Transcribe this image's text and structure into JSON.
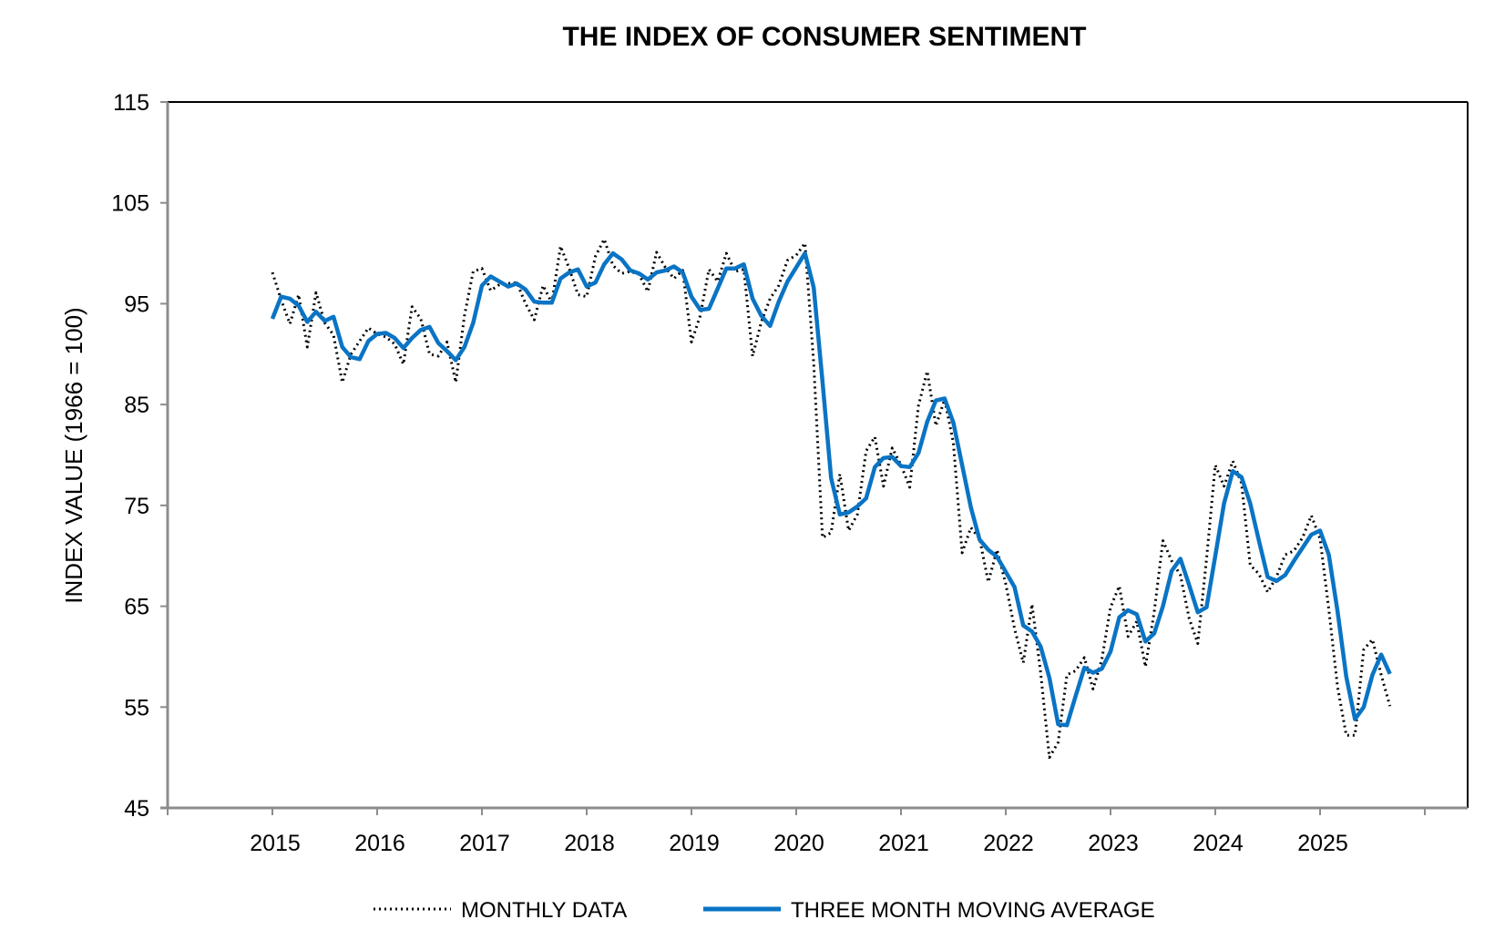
{
  "chart_data": {
    "type": "line",
    "title": "THE INDEX OF CONSUMER SENTIMENT",
    "xlabel": "",
    "ylabel": "INDEX VALUE (1966 = 100)",
    "ylim": [
      45,
      115
    ],
    "yticks": [
      45,
      55,
      65,
      75,
      85,
      95,
      105,
      115
    ],
    "xlim": [
      2014,
      2026.4
    ],
    "xticks": [
      "2015",
      "2016",
      "2017",
      "2018",
      "2019",
      "2020",
      "2021",
      "2022",
      "2023",
      "2024",
      "2025"
    ],
    "x_start": "2015-01",
    "x_frequency": "monthly",
    "grid": false,
    "legend_position": "bottom",
    "series": [
      {
        "name": "MONTHLY DATA",
        "style": "dotted",
        "color": "#000000",
        "values": [
          98.1,
          95.4,
          93.0,
          95.9,
          90.7,
          96.1,
          93.1,
          91.9,
          87.2,
          90.0,
          91.3,
          92.6,
          92.0,
          91.7,
          91.0,
          89.0,
          94.7,
          93.5,
          90.0,
          89.8,
          91.2,
          87.2,
          93.8,
          98.2,
          98.5,
          96.3,
          96.9,
          97.0,
          97.1,
          95.0,
          93.4,
          96.8,
          95.1,
          100.7,
          98.5,
          95.9,
          95.7,
          99.7,
          101.4,
          98.8,
          98.0,
          98.2,
          97.9,
          96.2,
          100.1,
          98.6,
          97.5,
          98.3,
          91.2,
          93.8,
          98.4,
          97.2,
          100.0,
          98.2,
          98.4,
          89.8,
          93.2,
          95.5,
          96.8,
          99.3,
          99.8,
          101.0,
          89.1,
          71.8,
          72.3,
          78.1,
          72.5,
          74.1,
          80.4,
          81.8,
          76.9,
          80.7,
          79.0,
          76.8,
          84.9,
          88.3,
          82.9,
          85.5,
          81.2,
          70.3,
          72.8,
          71.7,
          67.4,
          70.6,
          67.2,
          62.8,
          59.4,
          65.2,
          58.4,
          50.0,
          51.5,
          58.2,
          58.6,
          59.9,
          56.8,
          59.7,
          64.9,
          67.0,
          62.0,
          63.5,
          59.0,
          64.4,
          71.5,
          69.5,
          68.1,
          63.8,
          61.3,
          69.7,
          79.0,
          76.9,
          79.4,
          77.2,
          69.1,
          68.2,
          66.4,
          67.9,
          70.1,
          70.5,
          71.8,
          74.0,
          71.7,
          64.7,
          57.0,
          52.2,
          52.2,
          60.7,
          61.7,
          58.2,
          55.1
        ]
      },
      {
        "name": "THREE MONTH MOVING AVERAGE",
        "style": "solid",
        "color": "#0a74c4",
        "values": [
          93.5,
          95.7,
          95.5,
          94.8,
          93.2,
          94.2,
          93.3,
          93.7,
          90.7,
          89.7,
          89.5,
          91.3,
          92.0,
          92.1,
          91.6,
          90.6,
          91.6,
          92.4,
          92.7,
          91.1,
          90.3,
          89.4,
          90.7,
          93.1,
          96.8,
          97.7,
          97.2,
          96.7,
          97.0,
          96.4,
          95.2,
          95.1,
          95.1,
          97.5,
          98.1,
          98.4,
          96.7,
          97.1,
          98.9,
          100.0,
          99.4,
          98.3,
          98.0,
          97.4,
          98.1,
          98.3,
          98.7,
          98.1,
          95.7,
          94.4,
          94.5,
          96.5,
          98.5,
          98.5,
          98.9,
          95.5,
          93.8,
          92.8,
          95.2,
          97.2,
          98.6,
          100.0,
          96.6,
          87.3,
          77.7,
          74.1,
          74.3,
          74.9,
          75.7,
          78.8,
          79.7,
          79.8,
          78.9,
          78.8,
          80.2,
          83.3,
          85.4,
          85.6,
          83.2,
          79.0,
          74.8,
          71.6,
          70.6,
          69.9,
          68.4,
          66.9,
          63.1,
          62.5,
          61.0,
          57.9,
          53.3,
          53.2,
          56.1,
          58.9,
          58.4,
          58.8,
          60.5,
          63.9,
          64.6,
          64.2,
          61.5,
          62.3,
          65.0,
          68.5,
          69.7,
          67.1,
          64.4,
          64.9,
          70.0,
          75.2,
          78.4,
          77.8,
          75.2,
          71.5,
          67.9,
          67.5,
          68.1,
          69.5,
          70.8,
          72.1,
          72.5,
          70.1,
          64.5,
          58.0,
          53.8,
          55.0,
          58.2,
          60.2,
          58.3
        ]
      }
    ]
  }
}
